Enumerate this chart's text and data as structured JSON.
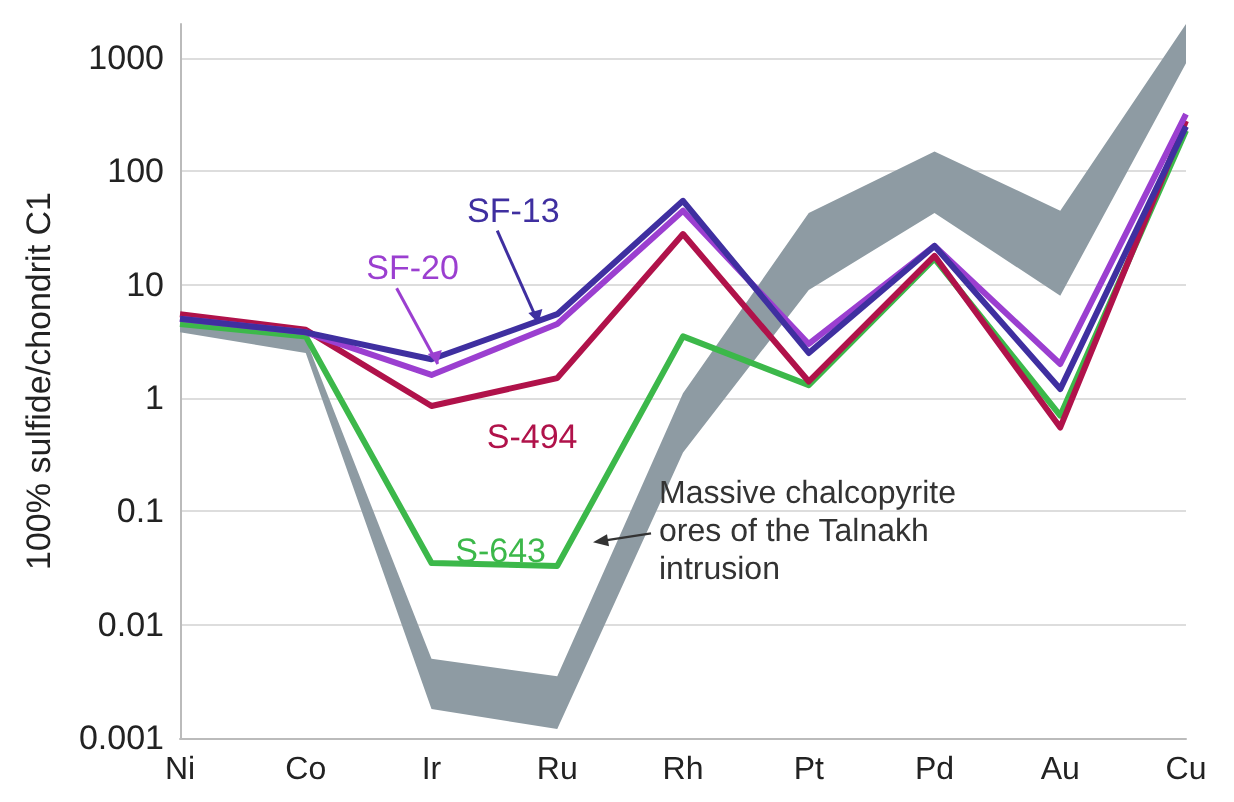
{
  "chart_data": {
    "type": "line",
    "ylabel": "100% sulfide/chondrit C1",
    "categories": [
      "Ni",
      "Co",
      "Ir",
      "Ru",
      "Rh",
      "Pt",
      "Pd",
      "Au",
      "Cu"
    ],
    "log": "y",
    "ylim": [
      0.001,
      2000
    ],
    "yticks": [
      0.001,
      0.01,
      0.1,
      1,
      10,
      100,
      1000
    ],
    "grid": "y",
    "series": [
      {
        "type": "area",
        "color": "#8e9ba3",
        "values": [
          null,
          null,
          null,
          null,
          null,
          null,
          null,
          null,
          null
        ],
        "lower": [
          3.8,
          2.5,
          0.0018,
          0.0012,
          0.33,
          9,
          43,
          8,
          900
        ],
        "upper": [
          5,
          3.3,
          0.005,
          0.0035,
          1.1,
          43,
          150,
          45,
          2000
        ]
      },
      {
        "name": "S-643",
        "color": "#3cb84a",
        "values": [
          4.5,
          3.5,
          0.035,
          0.033,
          3.5,
          1.3,
          17,
          0.7,
          230
        ]
      },
      {
        "name": "S-494",
        "color": "#b0124a",
        "values": [
          5.5,
          4,
          0.85,
          1.5,
          28,
          1.4,
          18,
          0.55,
          280
        ]
      },
      {
        "name": "SF-20",
        "color": "#9b3fd0",
        "values": [
          5,
          3.8,
          1.6,
          4.5,
          45,
          3,
          22,
          2,
          320
        ]
      },
      {
        "name": "SF-13",
        "color": "#3f2fa0",
        "values": [
          5,
          3.8,
          2.2,
          5.5,
          55,
          2.5,
          22,
          1.2,
          250
        ]
      }
    ],
    "annotations": [
      "Massive chalcopyrite ores of the Talnakh intrusion"
    ]
  }
}
